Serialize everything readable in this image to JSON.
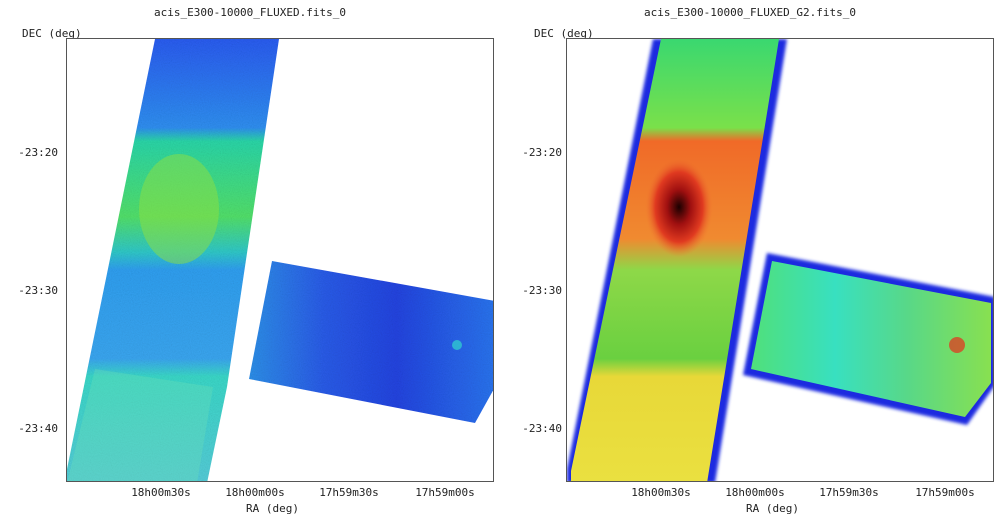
{
  "panels": [
    {
      "title": "acis_E300-10000_FLUXED.fits_0",
      "ylabel": "DEC (deg)",
      "xlabel": "RA (deg)",
      "yticks": [
        "-23:20",
        "-23:30",
        "-23:40"
      ],
      "xticks": [
        "18h00m30s",
        "18h00m00s",
        "17h59m30s",
        "17h59m00s"
      ]
    },
    {
      "title": "acis_E300-10000_FLUXED_G2.fits_0",
      "ylabel": "DEC (deg)",
      "xlabel": "RA (deg)",
      "yticks": [
        "-23:20",
        "-23:30",
        "-23:40"
      ],
      "xticks": [
        "18h00m30s",
        "18h00m00s",
        "17h59m30s",
        "17h59m00s"
      ]
    }
  ]
}
